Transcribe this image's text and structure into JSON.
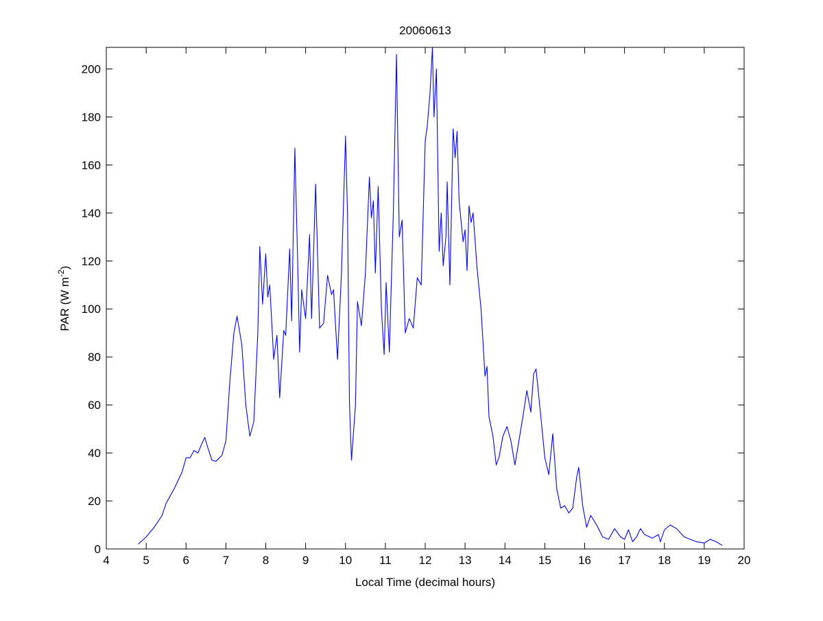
{
  "chart_data": {
    "type": "line",
    "title": "20060613",
    "xlabel": "Local Time (decimal hours)",
    "ylabel_main": "PAR (W m",
    "ylabel_sup": "-2",
    "ylabel_close": ")",
    "xlim": [
      4,
      20
    ],
    "ylim": [
      0,
      209
    ],
    "xticks": [
      4,
      5,
      6,
      7,
      8,
      9,
      10,
      11,
      12,
      13,
      14,
      15,
      16,
      17,
      18,
      19,
      20
    ],
    "yticks": [
      0,
      20,
      40,
      60,
      80,
      100,
      120,
      140,
      160,
      180,
      200
    ],
    "grid": false,
    "line_color": "#0000ff",
    "series": [
      {
        "x": [
          4.8,
          5.0,
          5.2,
          5.4,
          5.5,
          5.7,
          5.9,
          6.0,
          6.1,
          6.2,
          6.3,
          6.4,
          6.47,
          6.55,
          6.65,
          6.75,
          6.9,
          7.0,
          7.1,
          7.2,
          7.28,
          7.4,
          7.5,
          7.6,
          7.7,
          7.8,
          7.85,
          7.92,
          8.0,
          8.05,
          8.1,
          8.2,
          8.28,
          8.35,
          8.45,
          8.5,
          8.6,
          8.65,
          8.73,
          8.8,
          8.85,
          8.9,
          9.0,
          9.1,
          9.15,
          9.25,
          9.35,
          9.45,
          9.55,
          9.65,
          9.7,
          9.8,
          9.9,
          10.0,
          10.05,
          10.1,
          10.15,
          10.25,
          10.3,
          10.4,
          10.5,
          10.6,
          10.65,
          10.7,
          10.75,
          10.82,
          10.9,
          10.97,
          11.02,
          11.1,
          11.2,
          11.28,
          11.35,
          11.42,
          11.5,
          11.6,
          11.7,
          11.8,
          11.9,
          12.0,
          12.05,
          12.12,
          12.18,
          12.22,
          12.28,
          12.35,
          12.4,
          12.45,
          12.52,
          12.55,
          12.62,
          12.7,
          12.75,
          12.8,
          12.85,
          12.95,
          13.0,
          13.05,
          13.1,
          13.15,
          13.2,
          13.3,
          13.4,
          13.5,
          13.55,
          13.6,
          13.7,
          13.78,
          13.85,
          13.95,
          14.05,
          14.15,
          14.25,
          14.35,
          14.45,
          14.55,
          14.65,
          14.72,
          14.78,
          14.9,
          15.0,
          15.1,
          15.2,
          15.3,
          15.4,
          15.5,
          15.6,
          15.7,
          15.8,
          15.85,
          15.95,
          16.05,
          16.15,
          16.3,
          16.45,
          16.6,
          16.75,
          16.9,
          17.0,
          17.1,
          17.2,
          17.3,
          17.4,
          17.5,
          17.7,
          17.85,
          17.9,
          18.0,
          18.15,
          18.3,
          18.5,
          18.8,
          19.0,
          19.15,
          19.3,
          19.45
        ],
        "y": [
          2,
          5,
          9,
          14,
          19,
          25,
          32,
          38,
          38,
          41,
          40,
          44,
          46.5,
          42,
          37,
          36.5,
          39,
          45,
          70,
          90,
          97,
          85,
          60,
          47,
          53,
          90,
          126,
          102,
          123,
          105,
          110,
          79,
          89,
          63,
          91,
          89,
          125,
          95,
          167,
          120,
          82,
          108,
          96,
          131,
          96,
          152,
          92,
          94,
          114,
          106,
          108,
          79,
          115,
          172,
          140,
          60,
          37,
          60,
          103,
          93,
          115,
          155,
          138,
          145,
          115,
          151,
          100,
          81,
          111,
          82,
          140,
          206,
          130,
          137,
          90,
          96,
          92,
          113,
          110,
          170,
          176,
          190,
          210,
          180,
          200,
          124,
          140,
          118,
          130,
          153,
          110,
          175,
          163,
          174,
          145,
          128,
          133,
          116,
          143,
          136,
          140,
          117,
          100,
          72,
          76,
          55,
          47,
          35,
          38,
          47,
          51,
          45,
          35,
          45,
          55,
          66,
          57,
          73,
          75,
          55,
          38,
          31,
          48,
          25,
          17,
          18,
          15,
          17,
          30,
          34,
          18,
          9,
          14,
          10,
          5,
          4,
          8.5,
          5,
          4,
          8,
          3,
          5,
          8.5,
          6,
          4.5,
          6,
          3,
          8,
          10,
          8.5,
          5,
          3,
          2.5,
          4,
          3,
          1.5
        ]
      }
    ]
  }
}
